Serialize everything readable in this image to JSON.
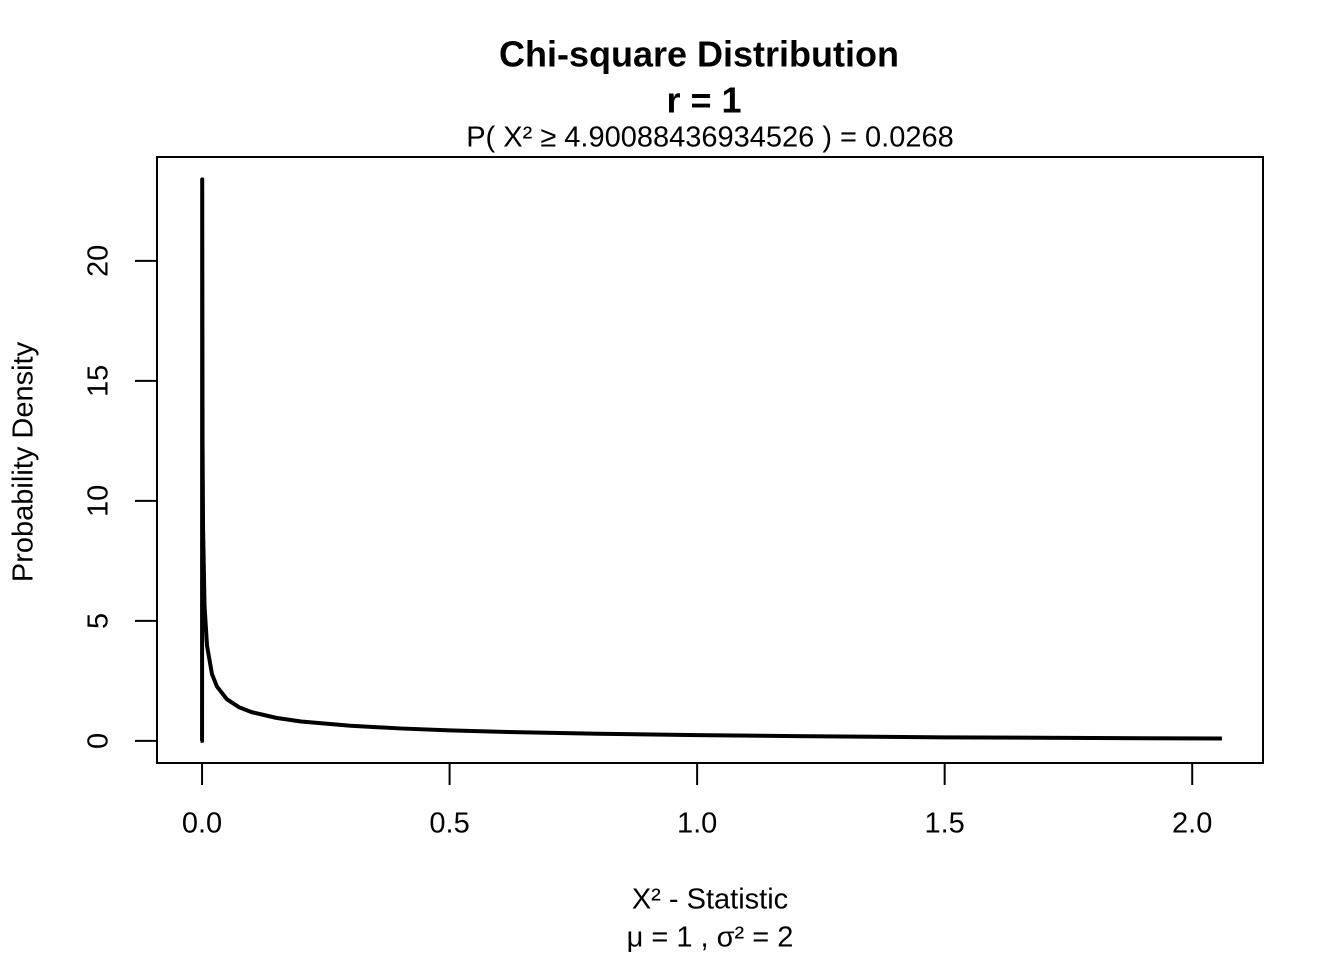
{
  "chart_data": {
    "type": "line",
    "title": "Chi-square Distribution",
    "subtitle": "r  =  1",
    "annotation": "P(  X²  ≥  4.90088436934526  ) = 0.0268",
    "x_label": "X² - Statistic",
    "x_sublabel": "μ =  1 , σ² =  2",
    "y_label": "Probability Density",
    "x": [
      -0.003,
      0,
      0.0003,
      0.001,
      0.002,
      0.005,
      0.01,
      0.02,
      0.03,
      0.05,
      0.075,
      0.1,
      0.15,
      0.2,
      0.3,
      0.4,
      0.5,
      0.6,
      0.8,
      1.0,
      1.2,
      1.5,
      1.8,
      2.06
    ],
    "series": [
      {
        "color": "#000000",
        "values": [
          0,
          0,
          23.4,
          12.6,
          8.92,
          5.63,
          3.97,
          2.79,
          2.27,
          1.74,
          1.4,
          1.2,
          0.96,
          0.81,
          0.63,
          0.52,
          0.44,
          0.38,
          0.3,
          0.24,
          0.2,
          0.15,
          0.12,
          0.1
        ]
      }
    ],
    "xlim": [
      -0.091,
      2.143
    ],
    "ylim": [
      -0.92,
      24.33
    ],
    "xticks": [
      {
        "value": 0,
        "label": "0.0"
      },
      0.5,
      {
        "value": 1,
        "label": "1.0"
      },
      1.5,
      {
        "value": 2,
        "label": "2.0"
      }
    ],
    "yticks": [
      0,
      5,
      10,
      15,
      20
    ],
    "grid": false
  }
}
